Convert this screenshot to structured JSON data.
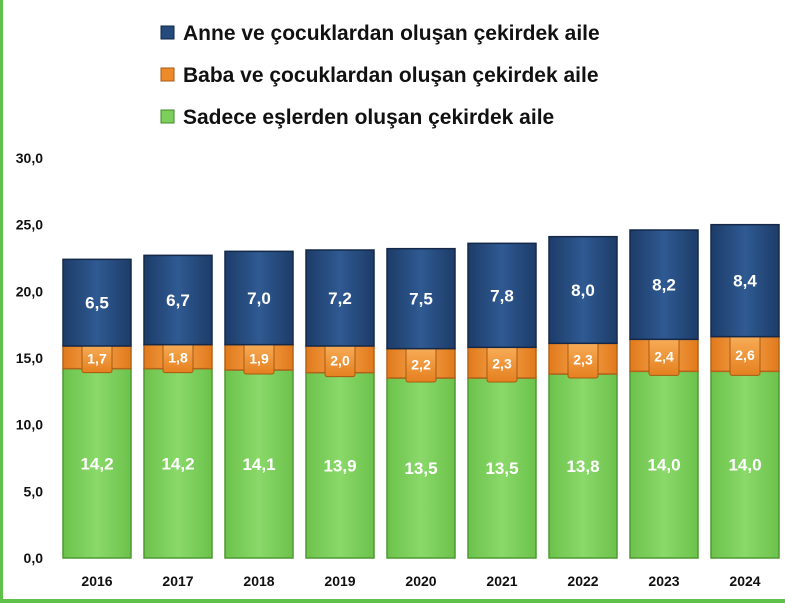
{
  "colors": {
    "mother": "#254a7c",
    "father": "#ee8a2a",
    "couple": "#7ccf5a",
    "frame": "#5fc04a",
    "label_on_dark": "#ffffff"
  },
  "legend": [
    {
      "label": "Anne ve çocuklardan oluşan çekirdek aile",
      "series": "mother"
    },
    {
      "label": "Baba ve çocuklardan oluşan çekirdek aile",
      "series": "father"
    },
    {
      "label": "Sadece eşlerden oluşan çekirdek aile",
      "series": "couple"
    }
  ],
  "chart_data": {
    "type": "bar",
    "stacked": true,
    "categories": [
      "2016",
      "2017",
      "2018",
      "2019",
      "2020",
      "2021",
      "2022",
      "2023",
      "2024"
    ],
    "series": [
      {
        "key": "couple",
        "name": "Sadece eşlerden oluşan çekirdek aile",
        "values": [
          14.2,
          14.2,
          14.1,
          13.9,
          13.5,
          13.5,
          13.8,
          14.0,
          14.0
        ],
        "labels": [
          "14,2",
          "14,2",
          "14,1",
          "13,9",
          "13,5",
          "13,5",
          "13,8",
          "14,0",
          "14,0"
        ]
      },
      {
        "key": "father",
        "name": "Baba ve çocuklardan oluşan çekirdek aile",
        "values": [
          1.7,
          1.8,
          1.9,
          2.0,
          2.2,
          2.3,
          2.3,
          2.4,
          2.6
        ],
        "labels": [
          "1,7",
          "1,8",
          "1,9",
          "2,0",
          "2,2",
          "2,3",
          "2,3",
          "2,4",
          "2,6"
        ]
      },
      {
        "key": "mother",
        "name": "Anne ve çocuklardan oluşan çekirdek aile",
        "values": [
          6.5,
          6.7,
          7.0,
          7.2,
          7.5,
          7.8,
          8.0,
          8.2,
          8.4
        ],
        "labels": [
          "6,5",
          "6,7",
          "7,0",
          "7,2",
          "7,5",
          "7,8",
          "8,0",
          "8,2",
          "8,4"
        ]
      }
    ],
    "ylim": [
      0,
      30
    ],
    "yticks": [
      0,
      5,
      10,
      15,
      20,
      25,
      30
    ],
    "ytick_labels": [
      "0,0",
      "5,0",
      "10,0",
      "15,0",
      "20,0",
      "25,0",
      "30,0"
    ],
    "legend_position": "top",
    "grid": false,
    "title": "",
    "xlabel": "",
    "ylabel": ""
  }
}
